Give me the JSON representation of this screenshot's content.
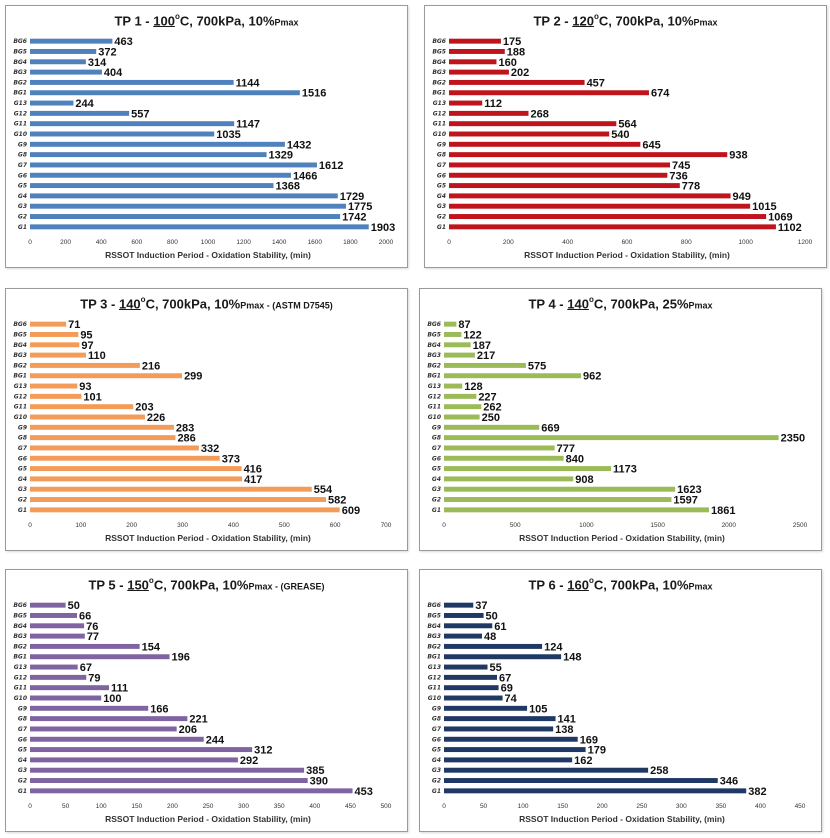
{
  "chart_data": [
    {
      "type": "bar",
      "orientation": "horizontal",
      "title": {
        "prefix": "TP 1 - ",
        "temp": "100",
        "deg": "o",
        "unit": "C",
        "rest": ", 700kPa, 10%",
        "pmax": "Pmax",
        "extra": ""
      },
      "categories": [
        "BG6",
        "BG5",
        "BG4",
        "BG3",
        "BG2",
        "BG1",
        "G13",
        "G12",
        "G11",
        "G10",
        "G9",
        "G8",
        "G7",
        "G6",
        "G5",
        "G4",
        "G3",
        "G2",
        "G1"
      ],
      "values": [
        463,
        372,
        314,
        404,
        1144,
        1516,
        244,
        557,
        1147,
        1035,
        1432,
        1329,
        1612,
        1466,
        1368,
        1729,
        1775,
        1742,
        1903
      ],
      "xlim": [
        0,
        2000
      ],
      "xticks": [
        0,
        200,
        400,
        600,
        800,
        1000,
        1200,
        1400,
        1600,
        1800,
        2000
      ],
      "xlabel": "RSSOT Induction Period - Oxidation Stability, (min)",
      "color": "#4f81bd"
    },
    {
      "type": "bar",
      "orientation": "horizontal",
      "title": {
        "prefix": "TP 2 - ",
        "temp": "120",
        "deg": "o",
        "unit": "C",
        "rest": ", 700kPa, 10%",
        "pmax": "Pmax",
        "extra": ""
      },
      "categories": [
        "BG6",
        "BG5",
        "BG4",
        "BG3",
        "BG2",
        "BG1",
        "G13",
        "G12",
        "G11",
        "G10",
        "G9",
        "G8",
        "G7",
        "G6",
        "G5",
        "G4",
        "G3",
        "G2",
        "G1"
      ],
      "values": [
        175,
        188,
        160,
        202,
        457,
        674,
        112,
        268,
        564,
        540,
        645,
        938,
        745,
        736,
        778,
        949,
        1015,
        1069,
        1102
      ],
      "xlim": [
        0,
        1200
      ],
      "xticks": [
        0,
        200,
        400,
        600,
        800,
        1000,
        1200
      ],
      "xlabel": "RSSOT Induction Period - Oxidation Stability, (min)",
      "color": "#c0141c"
    },
    {
      "type": "bar",
      "orientation": "horizontal",
      "title": {
        "prefix": "TP 3 - ",
        "temp": "140",
        "deg": "o",
        "unit": "C",
        "rest": ", 700kPa, 10%",
        "pmax": "Pmax",
        "extra": " - (ASTM D7545)"
      },
      "categories": [
        "BG6",
        "BG5",
        "BG4",
        "BG3",
        "BG2",
        "BG1",
        "G13",
        "G12",
        "G11",
        "G10",
        "G9",
        "G8",
        "G7",
        "G6",
        "G5",
        "G4",
        "G3",
        "G2",
        "G1"
      ],
      "values": [
        71,
        95,
        97,
        110,
        216,
        299,
        93,
        101,
        203,
        226,
        283,
        286,
        332,
        373,
        416,
        417,
        554,
        582,
        609
      ],
      "xlim": [
        0,
        700
      ],
      "xticks": [
        0,
        100,
        200,
        300,
        400,
        500,
        600,
        700
      ],
      "xlabel": "RSSOT Induction Period - Oxidation Stability, (min)",
      "color": "#f39c5a"
    },
    {
      "type": "bar",
      "orientation": "horizontal",
      "title": {
        "prefix": "TP 4 - ",
        "temp": "140",
        "deg": "o",
        "unit": "C",
        "rest": ", 700kPa, 25%",
        "pmax": "Pmax",
        "extra": ""
      },
      "categories": [
        "BG6",
        "BG5",
        "BG4",
        "BG3",
        "BG2",
        "BG1",
        "G13",
        "G12",
        "G11",
        "G10",
        "G9",
        "G8",
        "G7",
        "G6",
        "G5",
        "G4",
        "G3",
        "G2",
        "G1"
      ],
      "values": [
        87,
        122,
        187,
        217,
        575,
        962,
        128,
        227,
        262,
        250,
        669,
        2350,
        777,
        840,
        1173,
        908,
        1623,
        1597,
        1861
      ],
      "xlim": [
        0,
        2500
      ],
      "xticks": [
        0,
        500,
        1000,
        1500,
        2000,
        2500
      ],
      "xlabel": "RSSOT Induction Period - Oxidation Stability, (min)",
      "color": "#9bbb59"
    },
    {
      "type": "bar",
      "orientation": "horizontal",
      "title": {
        "prefix": "TP 5 - ",
        "temp": "150",
        "deg": "o",
        "unit": "C",
        "rest": ", 700kPa, 10%",
        "pmax": "Pmax",
        "extra": " - (GREASE)"
      },
      "categories": [
        "BG6",
        "BG5",
        "BG4",
        "BG3",
        "BG2",
        "BG1",
        "G13",
        "G12",
        "G11",
        "G10",
        "G9",
        "G8",
        "G7",
        "G6",
        "G5",
        "G4",
        "G3",
        "G2",
        "G1"
      ],
      "values": [
        50,
        66,
        76,
        77,
        154,
        196,
        67,
        79,
        111,
        100,
        166,
        221,
        206,
        244,
        312,
        292,
        385,
        390,
        453
      ],
      "xlim": [
        0,
        500
      ],
      "xticks": [
        0,
        50,
        100,
        150,
        200,
        250,
        300,
        350,
        400,
        450,
        500
      ],
      "xlabel": "RSSOT Induction Period - Oxidation Stability, (min)",
      "color": "#8064a2"
    },
    {
      "type": "bar",
      "orientation": "horizontal",
      "title": {
        "prefix": "TP 6 - ",
        "temp": "160",
        "deg": "o",
        "unit": "C",
        "rest": ", 700kPa, 10%",
        "pmax": "Pmax",
        "extra": ""
      },
      "categories": [
        "BG6",
        "BG5",
        "BG4",
        "BG3",
        "BG2",
        "BG1",
        "G13",
        "G12",
        "G11",
        "G10",
        "G9",
        "G8",
        "G7",
        "G6",
        "G5",
        "G4",
        "G3",
        "G2",
        "G1"
      ],
      "values": [
        37,
        50,
        61,
        48,
        124,
        148,
        55,
        67,
        69,
        74,
        105,
        141,
        138,
        169,
        179,
        162,
        258,
        346,
        382
      ],
      "xlim": [
        0,
        450
      ],
      "xticks": [
        0,
        50,
        100,
        150,
        200,
        250,
        300,
        350,
        400,
        450
      ],
      "xlabel": "RSSOT Induction Period - Oxidation Stability, (min)",
      "color": "#1f3864"
    }
  ]
}
